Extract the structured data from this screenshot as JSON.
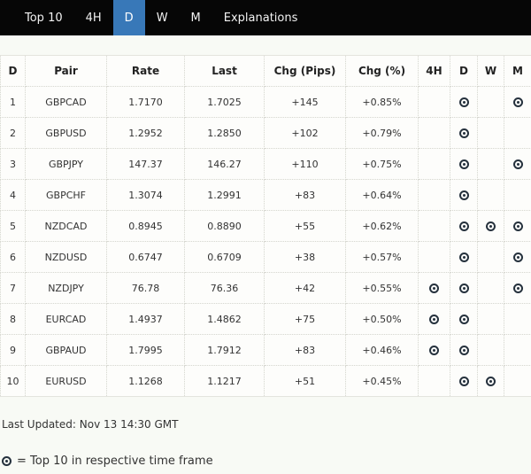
{
  "nav": {
    "items": [
      {
        "label": "Top 10",
        "active": false
      },
      {
        "label": "4H",
        "active": false
      },
      {
        "label": "D",
        "active": true
      },
      {
        "label": "W",
        "active": false
      },
      {
        "label": "M",
        "active": false
      },
      {
        "label": "Explanations",
        "active": false
      }
    ]
  },
  "table": {
    "columns": [
      {
        "label": "D",
        "key": "rank"
      },
      {
        "label": "Pair",
        "key": "pair"
      },
      {
        "label": "Rate",
        "key": "rate"
      },
      {
        "label": "Last",
        "key": "last"
      },
      {
        "label": "Chg (Pips)",
        "key": "chg-pips"
      },
      {
        "label": "Chg (%)",
        "key": "chg-pct"
      },
      {
        "label": "4H",
        "key": "tf-4h"
      },
      {
        "label": "D",
        "key": "tf-d"
      },
      {
        "label": "W",
        "key": "tf-w"
      },
      {
        "label": "M",
        "key": "tf-m"
      }
    ],
    "rows": [
      {
        "rank": "1",
        "pair": "GBPCAD",
        "rate": "1.7170",
        "last": "1.7025",
        "chg_pips": "+145",
        "chg_pct": "+0.85%",
        "tf": {
          "4h": false,
          "d": true,
          "w": false,
          "m": true
        }
      },
      {
        "rank": "2",
        "pair": "GBPUSD",
        "rate": "1.2952",
        "last": "1.2850",
        "chg_pips": "+102",
        "chg_pct": "+0.79%",
        "tf": {
          "4h": false,
          "d": true,
          "w": false,
          "m": false
        }
      },
      {
        "rank": "3",
        "pair": "GBPJPY",
        "rate": "147.37",
        "last": "146.27",
        "chg_pips": "+110",
        "chg_pct": "+0.75%",
        "tf": {
          "4h": false,
          "d": true,
          "w": false,
          "m": true
        }
      },
      {
        "rank": "4",
        "pair": "GBPCHF",
        "rate": "1.3074",
        "last": "1.2991",
        "chg_pips": "+83",
        "chg_pct": "+0.64%",
        "tf": {
          "4h": false,
          "d": true,
          "w": false,
          "m": false
        }
      },
      {
        "rank": "5",
        "pair": "NZDCAD",
        "rate": "0.8945",
        "last": "0.8890",
        "chg_pips": "+55",
        "chg_pct": "+0.62%",
        "tf": {
          "4h": false,
          "d": true,
          "w": true,
          "m": true
        }
      },
      {
        "rank": "6",
        "pair": "NZDUSD",
        "rate": "0.6747",
        "last": "0.6709",
        "chg_pips": "+38",
        "chg_pct": "+0.57%",
        "tf": {
          "4h": false,
          "d": true,
          "w": false,
          "m": true
        }
      },
      {
        "rank": "7",
        "pair": "NZDJPY",
        "rate": "76.78",
        "last": "76.36",
        "chg_pips": "+42",
        "chg_pct": "+0.55%",
        "tf": {
          "4h": true,
          "d": true,
          "w": false,
          "m": true
        }
      },
      {
        "rank": "8",
        "pair": "EURCAD",
        "rate": "1.4937",
        "last": "1.4862",
        "chg_pips": "+75",
        "chg_pct": "+0.50%",
        "tf": {
          "4h": true,
          "d": true,
          "w": false,
          "m": false
        }
      },
      {
        "rank": "9",
        "pair": "GBPAUD",
        "rate": "1.7995",
        "last": "1.7912",
        "chg_pips": "+83",
        "chg_pct": "+0.46%",
        "tf": {
          "4h": true,
          "d": true,
          "w": false,
          "m": false
        }
      },
      {
        "rank": "10",
        "pair": "EURUSD",
        "rate": "1.1268",
        "last": "1.1217",
        "chg_pips": "+51",
        "chg_pct": "+0.45%",
        "tf": {
          "4h": false,
          "d": true,
          "w": true,
          "m": false
        }
      }
    ]
  },
  "footer": {
    "last_updated": "Last Updated: Nov 13 14:30 GMT",
    "legend_text": "= Top 10 in respective time frame",
    "legend_icon": "target-icon"
  },
  "colors": {
    "accent_blue": "#3878b8",
    "nav_background": "#060606",
    "page_background": "#f8faf5",
    "icon_color": "#25313d"
  }
}
